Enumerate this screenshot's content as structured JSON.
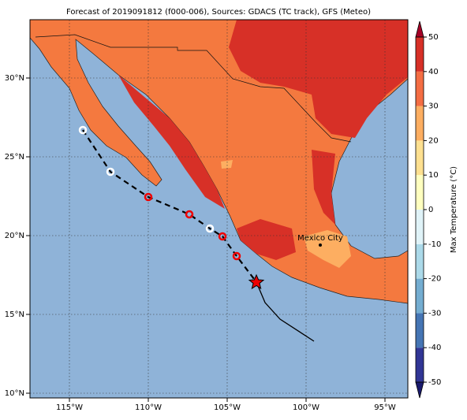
{
  "title": "Forecast of 2019091812 (f000-006), Sources: GDACS (TC track), GFS (Meteo)",
  "map": {
    "lat_labels": [
      "30°N",
      "25°N",
      "20°N",
      "15°N",
      "10°N"
    ],
    "lon_labels": [
      "115°W",
      "110°W",
      "105°W",
      "100°W",
      "95°W"
    ],
    "city": "Mexico City"
  },
  "colorbar": {
    "label": "Max Temperature (°C)",
    "range": [
      -50,
      50
    ],
    "ticks": [
      -50,
      -40,
      -30,
      -20,
      -10,
      0,
      10,
      20,
      30,
      40,
      50
    ],
    "colors": [
      "#313695",
      "#4575b4",
      "#74add1",
      "#abd9e9",
      "#e0f3f8",
      "#ffffbf",
      "#fee090",
      "#fdae61",
      "#f46d43",
      "#d73027"
    ],
    "under": "#1a1a6e",
    "over": "#a50026"
  }
}
